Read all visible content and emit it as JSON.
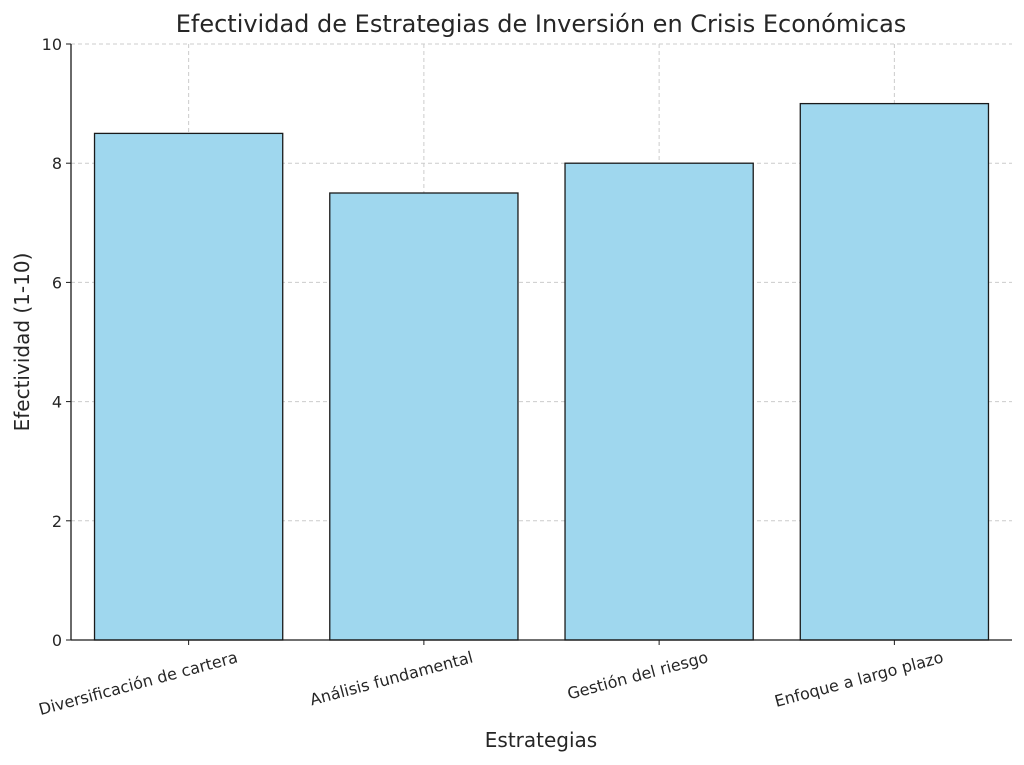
{
  "chart_data": {
    "type": "bar",
    "title": "Efectividad de Estrategias de Inversión en Crisis Económicas",
    "xlabel": "Estrategias",
    "ylabel": "Efectividad (1-10)",
    "categories": [
      "Diversificación de cartera",
      "Análisis fundamental",
      "Gestión del riesgo",
      "Enfoque a largo plazo"
    ],
    "values": [
      8.5,
      7.5,
      8,
      9
    ],
    "ylim": [
      0,
      10
    ],
    "yticks": [
      0,
      2,
      4,
      6,
      8,
      10
    ],
    "grid": true,
    "bar_color": "#9fd7ee",
    "bar_edge_color": "#1a1a1a"
  }
}
